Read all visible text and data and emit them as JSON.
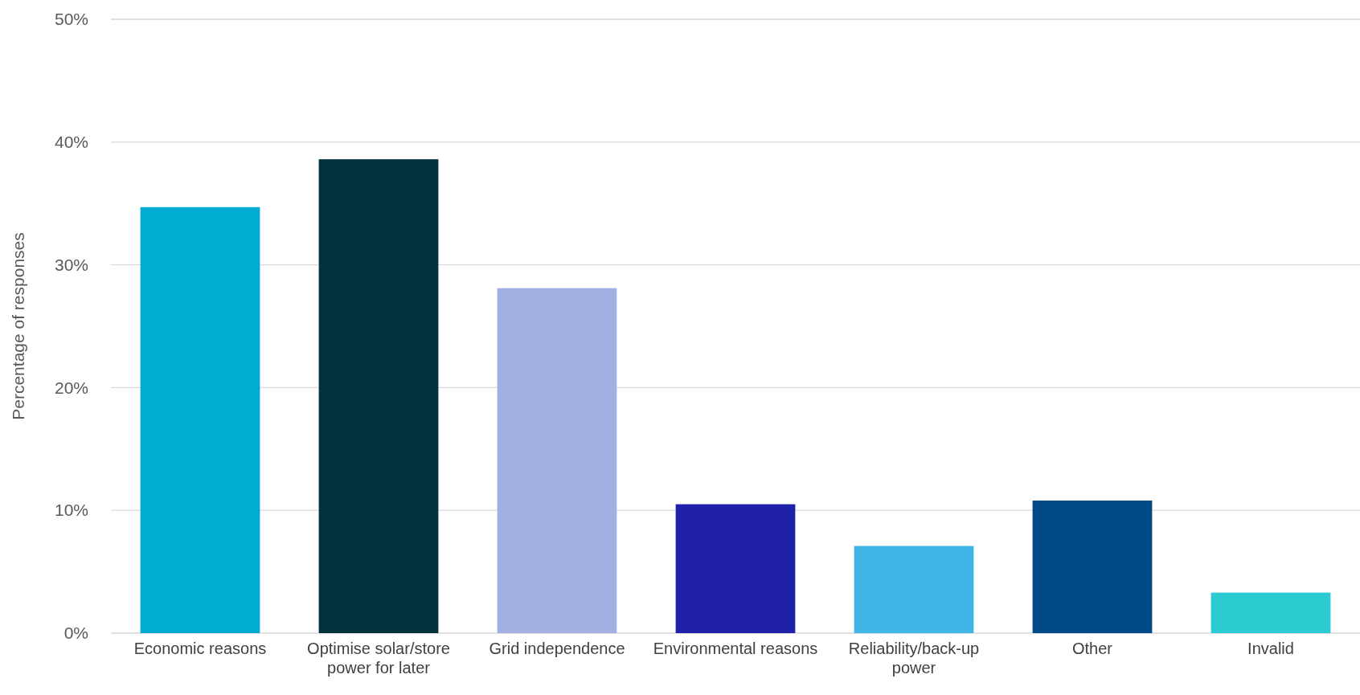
{
  "chart_data": {
    "type": "bar",
    "ylabel": "Percentage of responses",
    "categories": [
      "Economic reasons",
      "Optimise solar/store power for later",
      "Grid independence",
      "Environmental reasons",
      "Reliability/back-up power",
      "Other",
      "Invalid"
    ],
    "values": [
      34.7,
      38.6,
      28.1,
      10.5,
      7.1,
      10.8,
      3.3
    ],
    "colors": [
      "#00acd1",
      "#03313c",
      "#a1afe3",
      "#1f22a9",
      "#41b6e6",
      "#004987",
      "#2bcbd1"
    ],
    "ylim": [
      0,
      50
    ],
    "yticks": [
      {
        "value": 0,
        "label": "0%"
      },
      {
        "value": 10,
        "label": "10%"
      },
      {
        "value": 20,
        "label": "20%"
      },
      {
        "value": 30,
        "label": "30%"
      },
      {
        "value": 40,
        "label": "40%"
      },
      {
        "value": 50,
        "label": "50%"
      }
    ],
    "grid": "y"
  }
}
